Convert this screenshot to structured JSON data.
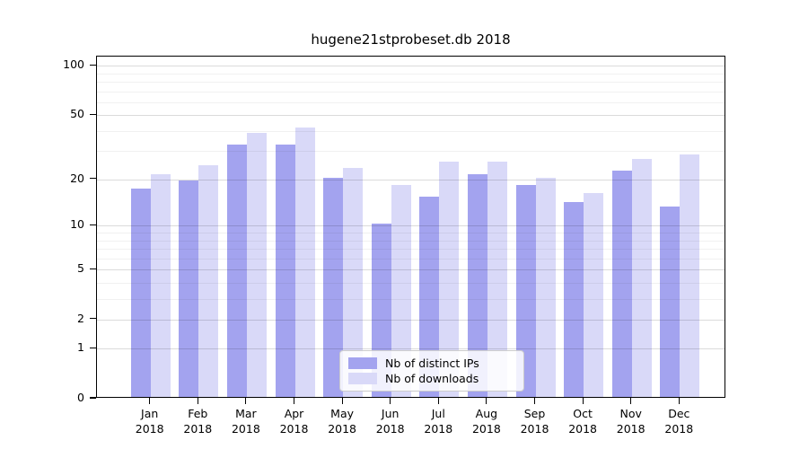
{
  "chart_data": {
    "type": "bar",
    "title": "hugene21stprobeset.db 2018",
    "year": "2018",
    "categories": [
      "Jan",
      "Feb",
      "Mar",
      "Apr",
      "May",
      "Jun",
      "Jul",
      "Aug",
      "Sep",
      "Oct",
      "Nov",
      "Dec"
    ],
    "series": [
      {
        "name": "Nb of distinct IPs",
        "color": "#a3a3ef",
        "values": [
          17,
          19,
          32,
          32,
          20,
          10,
          15,
          21,
          18,
          14,
          22,
          13
        ]
      },
      {
        "name": "Nb of downloads",
        "color": "#d9d9f8",
        "values": [
          21,
          24,
          38,
          41,
          23,
          18,
          25,
          25,
          20,
          16,
          26,
          28
        ]
      }
    ],
    "y_axis": {
      "scale": "log1p",
      "ticks": [
        0,
        1,
        2,
        5,
        10,
        20,
        50,
        100
      ],
      "minor_ticks": [
        3,
        4,
        6,
        7,
        8,
        9,
        30,
        40,
        60,
        70,
        80,
        90
      ],
      "max": 114
    },
    "x_axis": {
      "tick_labels_line2": "2018"
    },
    "grid": true,
    "legend_position": "lower center"
  }
}
